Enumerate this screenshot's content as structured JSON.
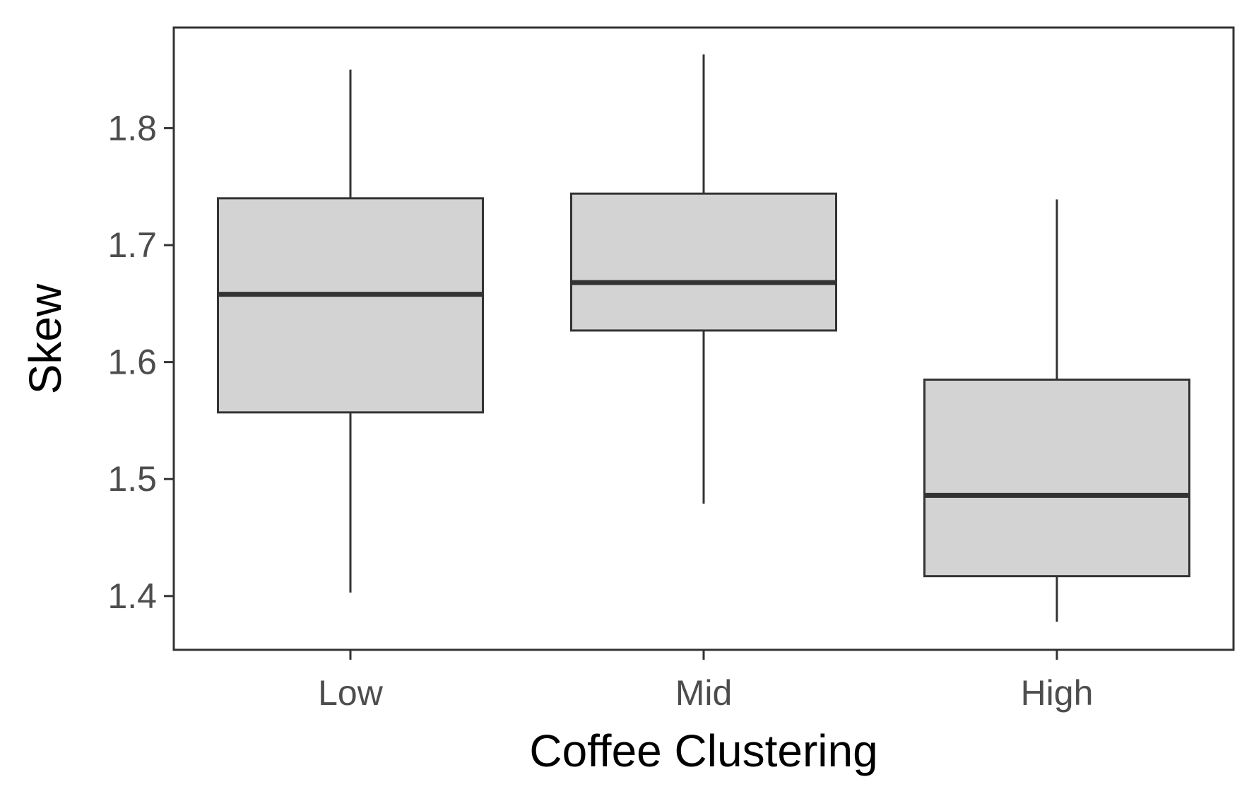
{
  "chart_data": {
    "type": "boxplot",
    "title": "",
    "xlabel": "Coffee Clustering",
    "ylabel": "Skew",
    "categories": [
      "Low",
      "Mid",
      "High"
    ],
    "boxes": [
      {
        "category": "Low",
        "whisker_low": 1.403,
        "q1": 1.557,
        "median": 1.658,
        "q3": 1.74,
        "whisker_high": 1.85
      },
      {
        "category": "Mid",
        "whisker_low": 1.479,
        "q1": 1.627,
        "median": 1.668,
        "q3": 1.744,
        "whisker_high": 1.863
      },
      {
        "category": "High",
        "whisker_low": 1.378,
        "q1": 1.417,
        "median": 1.486,
        "q3": 1.585,
        "whisker_high": 1.739
      }
    ],
    "y_ticks": [
      1.4,
      1.5,
      1.6,
      1.7,
      1.8
    ],
    "y_tick_labels": [
      "1.4",
      "1.5",
      "1.6",
      "1.7",
      "1.8"
    ],
    "ylim": [
      1.354,
      1.886
    ],
    "grid": false,
    "legend": "none",
    "colors": {
      "box_fill": "#d3d3d3",
      "line": "#333333",
      "panel_border": "#333333",
      "tick_label": "#4d4d4d",
      "axis_title": "#000000"
    }
  }
}
